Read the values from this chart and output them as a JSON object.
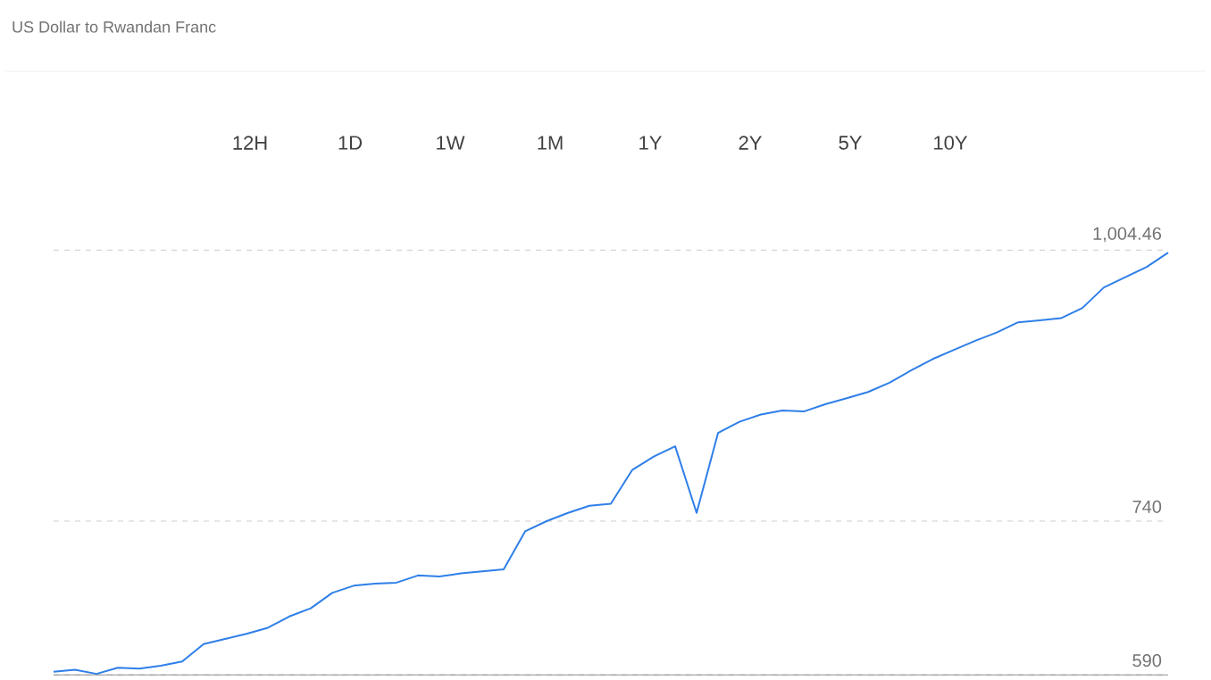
{
  "chart_data": {
    "type": "line",
    "title": "US Dollar to Rwandan Franc",
    "annotations": [
      "12H",
      "1D",
      "1W",
      "1M",
      "1Y",
      "2Y",
      "5Y",
      "10Y"
    ],
    "categories": [
      null,
      null,
      null,
      null,
      null,
      null,
      null,
      null,
      null,
      null,
      null,
      null,
      null,
      null,
      null,
      null,
      null,
      null,
      null,
      null,
      null,
      null,
      null,
      null,
      null,
      null,
      null,
      null,
      null,
      null,
      null,
      null,
      null,
      null,
      null,
      null,
      null,
      null,
      null,
      null,
      null,
      null,
      null,
      null,
      null,
      null,
      null,
      null,
      null,
      null,
      null,
      null,
      null
    ],
    "values": [
      593,
      595,
      591,
      597,
      596,
      599,
      603,
      620,
      625,
      630,
      636,
      647,
      655,
      670,
      677,
      679,
      680,
      687,
      686,
      689,
      691,
      693,
      730,
      740,
      748,
      755,
      757,
      790,
      803,
      813,
      748,
      826,
      837,
      844,
      848,
      847,
      854,
      860,
      866,
      875,
      887,
      898,
      907,
      916,
      924,
      934,
      936,
      938,
      948,
      968,
      978,
      988,
      1002
    ],
    "color": "#2f7fe8",
    "ylim": [
      590,
      1004.46
    ],
    "yticks": [
      590,
      740,
      {
        "value": 1004.46,
        "label": "1,004.46"
      }
    ],
    "grid": "y"
  }
}
